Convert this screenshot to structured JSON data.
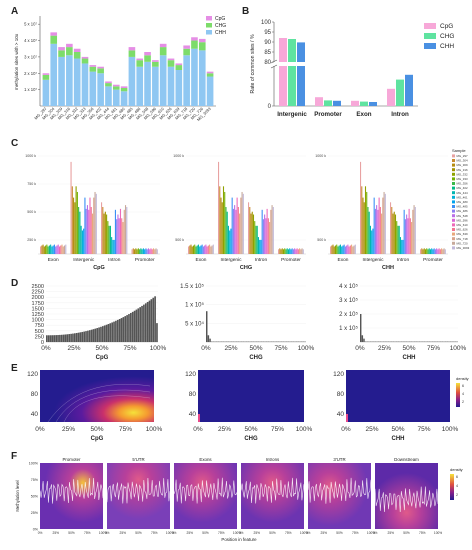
{
  "panel_labels": {
    "A": "A",
    "B": "B",
    "C": "C",
    "D": "D",
    "E": "E",
    "F": "F"
  },
  "colors": {
    "CpG": "#e58ee5",
    "CHG": "#7ddc6a",
    "CHH": "#8fc7f2",
    "B_CpG": "#f7a8d8",
    "B_CHG": "#5fe3a0",
    "B_CHH": "#4a90e2"
  },
  "chart_data": [
    {
      "id": "A",
      "type": "bar",
      "stacked": true,
      "ylabel": "methylation sites with > 10x",
      "yticks": [
        "1 x 10⁷",
        "2 x 10⁷",
        "3 x 10⁷",
        "4 x 10⁷",
        "5 x 10⁷"
      ],
      "ylim": [
        0,
        55000000
      ],
      "categories": [
        "MG_297",
        "MG_304",
        "MG_309",
        "MG_316",
        "MG_332",
        "MG_333",
        "MG_356",
        "MG_402",
        "MG_444",
        "MG_461",
        "MG_480",
        "MG_485",
        "MG_486",
        "MG_548",
        "MG_596",
        "MG_610",
        "MG_626",
        "MG_639",
        "MG_718",
        "MG_720",
        "MG_726",
        "MG_3093"
      ],
      "legend": [
        "CpG",
        "CHG",
        "CHH"
      ],
      "series": [
        {
          "name": "CHH",
          "values": [
            16,
            38,
            30,
            31,
            29,
            26,
            21,
            20,
            12,
            10,
            9,
            30,
            24,
            27,
            24,
            31,
            24,
            22,
            31,
            35,
            34,
            18
          ]
        },
        {
          "name": "CHG",
          "values": [
            3,
            5,
            4,
            5,
            4,
            3,
            3,
            3,
            2,
            2,
            2,
            4,
            4,
            4,
            3,
            5,
            4,
            3,
            4,
            5,
            5,
            2
          ]
        },
        {
          "name": "CpG",
          "values": [
            1,
            2,
            2,
            2,
            2,
            1,
            1,
            1,
            1,
            1,
            1,
            2,
            1,
            2,
            1,
            2,
            1,
            1,
            2,
            2,
            2,
            1
          ]
        }
      ]
    },
    {
      "id": "B",
      "type": "bar",
      "ylabel": "Rate of common sites / %",
      "yticks": [
        "0",
        "80",
        "85",
        "90",
        "95",
        "100"
      ],
      "categories": [
        "Intergenic",
        "Promoter",
        "Exon",
        "Intron"
      ],
      "legend": [
        "CpG",
        "CHG",
        "CHH"
      ],
      "series": [
        {
          "name": "CpG",
          "values": [
            92,
            2.2,
            1.3,
            4.3
          ]
        },
        {
          "name": "CHG",
          "values": [
            91.5,
            1.4,
            1.1,
            6.6
          ]
        },
        {
          "name": "CHH",
          "values": [
            89.8,
            1.3,
            1.0,
            7.8
          ]
        }
      ]
    },
    {
      "id": "C",
      "type": "bar",
      "yticks_left": [
        "1000 k",
        "750 k",
        "500 k",
        "250 k"
      ],
      "yticks_mid": [
        "1000 k",
        "500 k"
      ],
      "yticks_right": [
        "1000 k",
        "500 k"
      ],
      "groups": [
        "Exon",
        "Intergenic",
        "Intron",
        "Promoter"
      ],
      "facets": [
        "CpG",
        "CHG",
        "CHH"
      ],
      "legend_title": "Sample",
      "legend": [
        "MG_297",
        "MG_304",
        "MG_309",
        "MG_316",
        "MG_332",
        "MG_333",
        "MG_356",
        "MG_402",
        "MG_444",
        "MG_461",
        "MG_480",
        "MG_485",
        "MG_486",
        "MG_548",
        "MG_596",
        "MG_610",
        "MG_626",
        "MG_639",
        "MG_718",
        "MG_720",
        "MG_3093"
      ]
    },
    {
      "id": "D",
      "type": "histogram",
      "facets": [
        {
          "xlabel": "CpG",
          "yticks": [
            "0",
            "250",
            "500",
            "750",
            "1000",
            "1250",
            "1500",
            "1750",
            "2000",
            "2250",
            "2500"
          ]
        },
        {
          "xlabel": "CHG",
          "yticks": [
            "0",
            "5 x 10⁴",
            "1 x 10⁵",
            "1.5 x 10⁵"
          ]
        },
        {
          "xlabel": "CHH",
          "yticks": [
            "0",
            "1 x 10⁵",
            "2 x 10⁵",
            "3 x 10⁵",
            "4 x 10⁵"
          ]
        }
      ],
      "xticks": [
        "0%",
        "25%",
        "50%",
        "75%",
        "100%"
      ]
    },
    {
      "id": "E",
      "type": "heatmap",
      "facets": [
        "CpG",
        "CHG",
        "CHH"
      ],
      "yticks": [
        "40",
        "80",
        "120"
      ],
      "xticks": [
        "0%",
        "25%",
        "50%",
        "75%",
        "100%"
      ],
      "legend_title": "density",
      "legend_ticks": [
        "6",
        "4",
        "2"
      ]
    },
    {
      "id": "F",
      "type": "heatmap",
      "facets": [
        "Promoter",
        "5'UTR",
        "Exons",
        "Introns",
        "3'UTR",
        "Downstream"
      ],
      "ylabel": "Methylation level",
      "xlabel": "Position in feature",
      "yticks": [
        "100%",
        "75%",
        "50%",
        "25%",
        "0%"
      ],
      "xticks": [
        "0%",
        "25%",
        "50%",
        "75%",
        "100%"
      ],
      "legend_title": "density",
      "legend_ticks": [
        "6",
        "4",
        "2"
      ]
    }
  ]
}
